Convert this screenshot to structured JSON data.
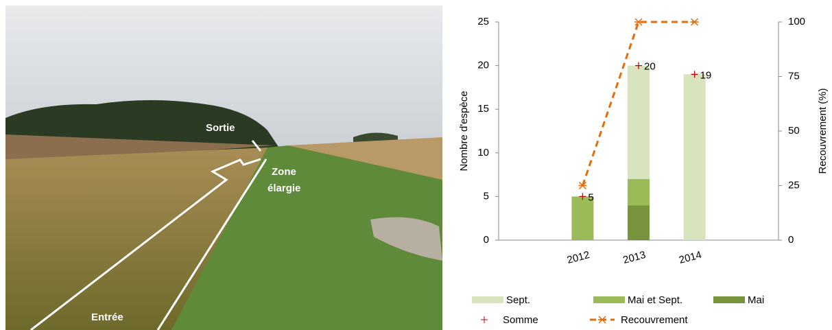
{
  "photo": {
    "exit": "Sortie",
    "zone": [
      "Zone",
      "élargie"
    ],
    "entry": "Entrée"
  },
  "chart_data": {
    "type": "bar",
    "categories": [
      null,
      "2012",
      "2013",
      "2014",
      null
    ],
    "y_label": "Nombre d'espèce",
    "y2_label": "Recouvrement (%)",
    "ylim": [
      0,
      25
    ],
    "yticks": [
      0,
      5,
      10,
      15,
      20,
      25
    ],
    "y2lim": [
      0,
      100
    ],
    "y2ticks": [
      0,
      25,
      50,
      75,
      100
    ],
    "series": [
      {
        "name": "Sept.",
        "color": "#d7e4bd",
        "kind": "bar",
        "values": [
          null,
          null,
          13,
          19,
          null
        ]
      },
      {
        "name": "Mai et Sept.",
        "color": "#9bbb59",
        "kind": "bar",
        "values": [
          null,
          5,
          3,
          null,
          null
        ]
      },
      {
        "name": "Mai",
        "color": "#77933c",
        "kind": "bar",
        "values": [
          null,
          null,
          4,
          null,
          null
        ]
      },
      {
        "name": "Somme",
        "color": "#c00000",
        "kind": "marker",
        "values": [
          null,
          5,
          20,
          19,
          null
        ]
      },
      {
        "name": "Recouvrement",
        "color": "#e46c0a",
        "kind": "line",
        "axis": "y2",
        "values": [
          null,
          25,
          100,
          100,
          null
        ]
      }
    ]
  }
}
